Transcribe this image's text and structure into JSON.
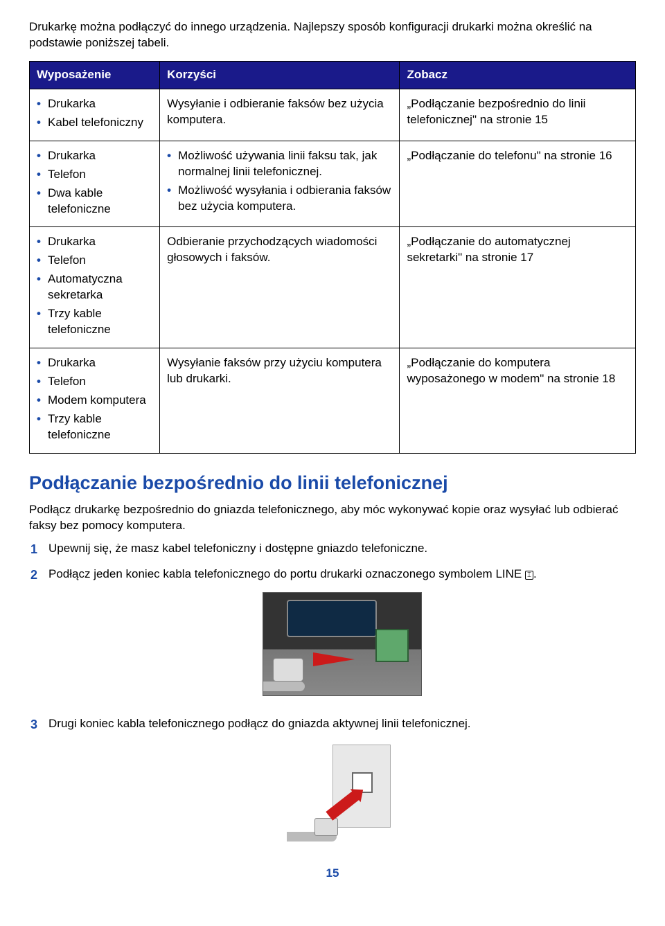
{
  "colors": {
    "header_bg": "#1a1a8a",
    "header_text": "#ffffff",
    "accent": "#1a4aa8",
    "bullet": "#1a4aa8",
    "border": "#000000",
    "arrow": "#cc1a1a"
  },
  "intro": "Drukarkę można podłączyć do innego urządzenia. Najlepszy sposób konfiguracji drukarki można określić na podstawie poniższej tabeli.",
  "table": {
    "headers": {
      "c1": "Wyposażenie",
      "c2": "Korzyści",
      "c3": "Zobacz"
    },
    "rows": [
      {
        "equipment": [
          "Drukarka",
          "Kabel telefoniczny"
        ],
        "benefits_text": "Wysyłanie i odbieranie faksów bez użycia komputera.",
        "see": "„Podłączanie bezpośrednio do linii telefonicznej\" na stronie 15"
      },
      {
        "equipment": [
          "Drukarka",
          "Telefon",
          "Dwa kable telefoniczne"
        ],
        "benefits_list": [
          "Możliwość używania linii faksu tak, jak normalnej linii telefonicznej.",
          "Możliwość wysyłania i odbierania faksów bez użycia komputera."
        ],
        "see": "„Podłączanie do telefonu\" na stronie 16"
      },
      {
        "equipment": [
          "Drukarka",
          "Telefon",
          "Automatyczna sekretarka",
          "Trzy kable telefoniczne"
        ],
        "benefits_text": "Odbieranie przychodzących wiadomości głosowych i faksów.",
        "see": "„Podłączanie do automatycznej sekretarki\" na stronie 17"
      },
      {
        "equipment": [
          "Drukarka",
          "Telefon",
          "Modem komputera",
          "Trzy kable telefoniczne"
        ],
        "benefits_text": "Wysyłanie faksów przy użyciu komputera lub drukarki.",
        "see": "„Podłączanie do komputera wyposażonego w modem\" na stronie 18"
      }
    ]
  },
  "section_heading": "Podłączanie bezpośrednio do linii telefonicznej",
  "section_intro": "Podłącz drukarkę bezpośrednio do gniazda telefonicznego, aby móc wykonywać kopie oraz wysyłać lub odbierać faksy bez pomocy komputera.",
  "steps": {
    "s1": "Upewnij się, że masz kabel telefoniczny i dostępne gniazdo telefoniczne.",
    "s2_pre": "Podłącz jeden koniec kabla telefonicznego do portu drukarki oznaczonego symbolem LINE ",
    "s2_post": ".",
    "s3": "Drugi koniec kabla telefonicznego podłącz do gniazda aktywnej linii telefonicznej."
  },
  "line_icon_glyph": "⌶",
  "page_number": "15"
}
